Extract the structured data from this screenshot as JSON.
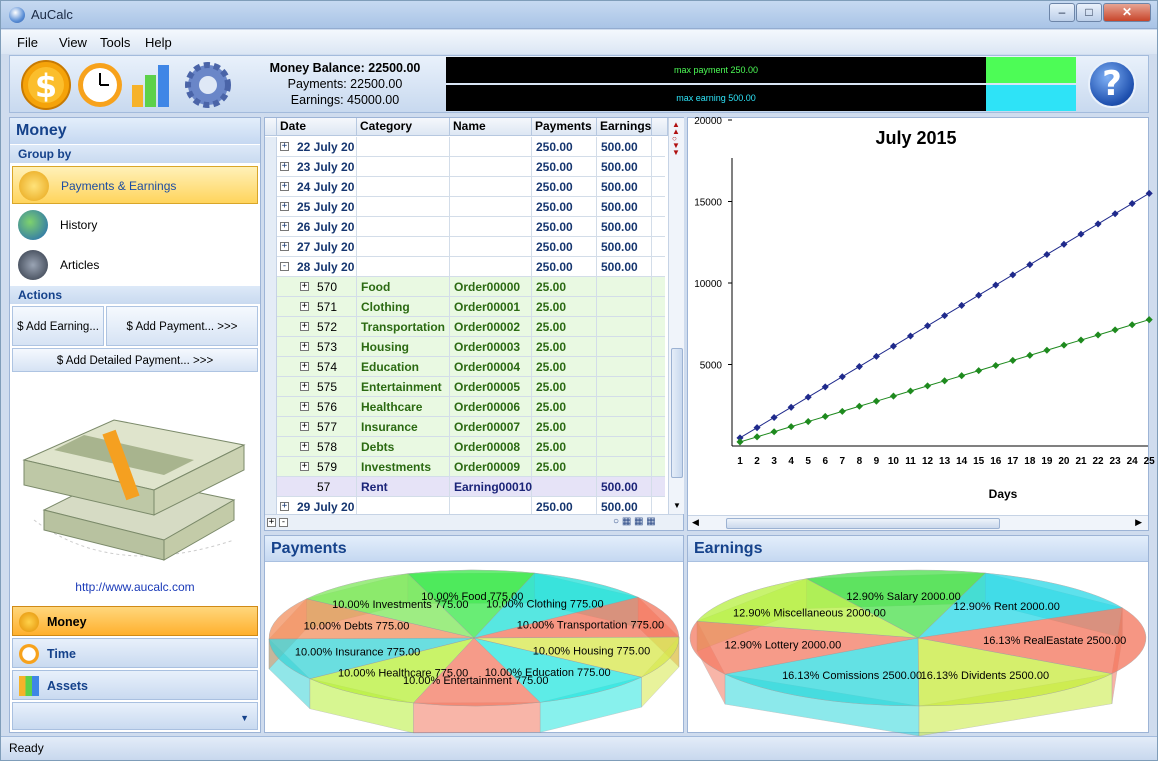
{
  "window": {
    "title": "AuCalc"
  },
  "menu": [
    "File",
    "View",
    "Tools",
    "Help"
  ],
  "balance": {
    "line1": "Money Balance: 22500.00",
    "line2": "Payments: 22500.00",
    "line3": "Earnings: 45000.00"
  },
  "max_bars": {
    "payment": "max payment 250.00",
    "earning": "max earning 500.00",
    "payment_color": "#4dfc56",
    "earning_color": "#2ee3f7"
  },
  "sidebar": {
    "title": "Money",
    "group_by": "Group by",
    "items": [
      "Payments & Earnings",
      "History",
      "Articles"
    ],
    "actions_title": "Actions",
    "btn_add_earning": "$ Add Earning...",
    "btn_add_payment": "$ Add Payment... >>>",
    "btn_add_detailed": "$ Add Detailed Payment... >>>",
    "url": "http://www.aucalc.com",
    "bottom_nav": [
      "Money",
      "Time",
      "Assets"
    ]
  },
  "grid": {
    "columns": [
      "Date",
      "Category",
      "Name",
      "Payments",
      "Earnings"
    ],
    "rows": [
      {
        "type": "day",
        "date": "22 July 20",
        "category": "",
        "name": "",
        "payments": "250.00",
        "earnings": "500.00"
      },
      {
        "type": "day",
        "date": "23 July 20",
        "category": "",
        "name": "",
        "payments": "250.00",
        "earnings": "500.00"
      },
      {
        "type": "day",
        "date": "24 July 20",
        "category": "",
        "name": "",
        "payments": "250.00",
        "earnings": "500.00"
      },
      {
        "type": "day",
        "date": "25 July 20",
        "category": "",
        "name": "",
        "payments": "250.00",
        "earnings": "500.00"
      },
      {
        "type": "day",
        "date": "26 July 20",
        "category": "",
        "name": "",
        "payments": "250.00",
        "earnings": "500.00"
      },
      {
        "type": "day",
        "date": "27 July 20",
        "category": "",
        "name": "",
        "payments": "250.00",
        "earnings": "500.00"
      },
      {
        "type": "dayopen",
        "date": "28 July 20",
        "category": "",
        "name": "",
        "payments": "250.00",
        "earnings": "500.00"
      },
      {
        "type": "pay",
        "date": "570",
        "category": "Food",
        "name": "Order00000",
        "payments": "25.00",
        "earnings": ""
      },
      {
        "type": "pay",
        "date": "571",
        "category": "Clothing",
        "name": "Order00001",
        "payments": "25.00",
        "earnings": ""
      },
      {
        "type": "pay",
        "date": "572",
        "category": "Transportation",
        "name": "Order00002",
        "payments": "25.00",
        "earnings": ""
      },
      {
        "type": "pay",
        "date": "573",
        "category": "Housing",
        "name": "Order00003",
        "payments": "25.00",
        "earnings": ""
      },
      {
        "type": "pay",
        "date": "574",
        "category": "Education",
        "name": "Order00004",
        "payments": "25.00",
        "earnings": ""
      },
      {
        "type": "pay",
        "date": "575",
        "category": "Entertainment",
        "name": "Order00005",
        "payments": "25.00",
        "earnings": ""
      },
      {
        "type": "pay",
        "date": "576",
        "category": "Healthcare",
        "name": "Order00006",
        "payments": "25.00",
        "earnings": ""
      },
      {
        "type": "pay",
        "date": "577",
        "category": "Insurance",
        "name": "Order00007",
        "payments": "25.00",
        "earnings": ""
      },
      {
        "type": "pay",
        "date": "578",
        "category": "Debts",
        "name": "Order00008",
        "payments": "25.00",
        "earnings": ""
      },
      {
        "type": "pay",
        "date": "579",
        "category": "Investments",
        "name": "Order00009",
        "payments": "25.00",
        "earnings": ""
      },
      {
        "type": "earn",
        "date": "57",
        "category": "Rent",
        "name": "Earning00010",
        "payments": "",
        "earnings": "500.00"
      },
      {
        "type": "day",
        "date": "29 July 20",
        "category": "",
        "name": "",
        "payments": "250.00",
        "earnings": "500.00"
      }
    ]
  },
  "chart_data": [
    {
      "type": "line",
      "title": "July 2015",
      "xlabel": "Days",
      "ylabel": "",
      "x": [
        1,
        2,
        3,
        4,
        5,
        6,
        7,
        8,
        9,
        10,
        11,
        12,
        13,
        14,
        15,
        16,
        17,
        18,
        19,
        20,
        21,
        22,
        23,
        24,
        25
      ],
      "ylim": [
        0,
        20000
      ],
      "yticks": [
        5000,
        10000,
        15000,
        20000
      ],
      "series": [
        {
          "color": "#1f2a8c",
          "values": [
            500,
            1125,
            1750,
            2375,
            3000,
            3625,
            4250,
            4875,
            5500,
            6125,
            6750,
            7375,
            8000,
            8625,
            9250,
            9875,
            10500,
            11125,
            11750,
            12375,
            13000,
            13625,
            14250,
            14875,
            15500
          ]
        },
        {
          "color": "#1e8a1e",
          "values": [
            250,
            562,
            875,
            1187,
            1500,
            1812,
            2125,
            2437,
            2750,
            3062,
            3375,
            3687,
            4000,
            4312,
            4625,
            4937,
            5250,
            5562,
            5875,
            6187,
            6500,
            6812,
            7125,
            7437,
            7750
          ]
        }
      ]
    },
    {
      "type": "pie",
      "title": "Payments",
      "labels": [
        "10.00% Clothing 775.00",
        "10.00% Transportation 775.00",
        "10.00% Housing 775.00",
        "10.00% Education 775.00",
        "10.00% Entertainment 775.00",
        "10.00% Healthcare 775.00",
        "10.00% Insurance 775.00",
        "10.00% Debts 775.00",
        "10.00% Investments 775.00",
        "10.00% Food 775.00"
      ],
      "values": [
        775,
        775,
        775,
        775,
        775,
        775,
        775,
        775,
        775,
        775
      ],
      "colors": [
        "#20e0d8",
        "#f4745a",
        "#d7e84a",
        "#27e6e0",
        "#f47a62",
        "#b8f038",
        "#39d3d6",
        "#f2905e",
        "#7ee85a",
        "#38e848"
      ]
    },
    {
      "type": "pie",
      "title": "Earnings",
      "labels": [
        "12.90% Rent 2000.00",
        "16.13% RealEastate 2500.00",
        "16.13% Dividents 2500.00",
        "16.13% Comissions 2500.00",
        "12.90% Lottery 2000.00",
        "12.90% Miscellaneous 2000.00",
        "12.90% Salary 2000.00"
      ],
      "values": [
        2000,
        2500,
        2500,
        2500,
        2000,
        2000,
        2000
      ],
      "colors": [
        "#29d8e6",
        "#f4745a",
        "#c8ea3c",
        "#2fd8dc",
        "#f47a62",
        "#b6f040",
        "#4ae04c"
      ]
    }
  ],
  "status": {
    "text": "Ready"
  }
}
